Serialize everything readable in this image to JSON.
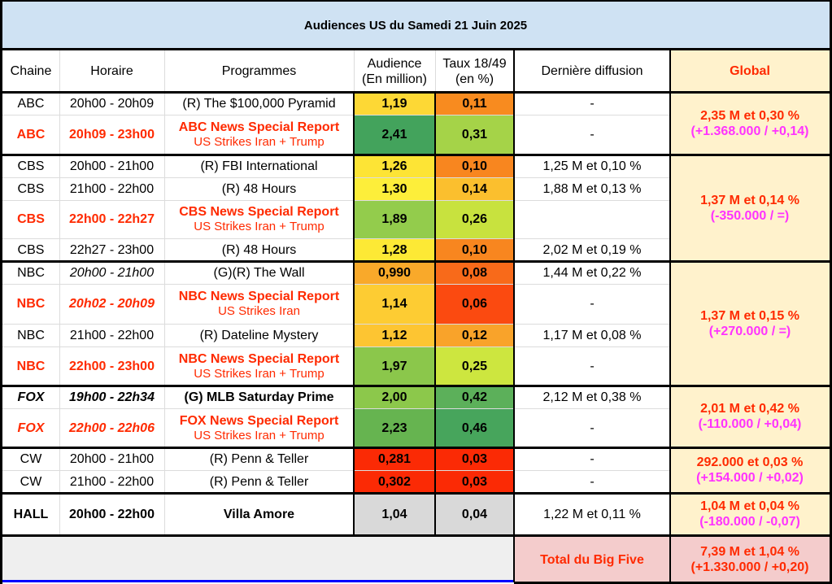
{
  "title": "Audiences US du Samedi 21 Juin 2025",
  "headers": {
    "chaine": "Chaine",
    "horaire": "Horaire",
    "programmes": "Programmes",
    "audience_l1": "Audience",
    "audience_l2": "(En million)",
    "taux_l1": "Taux 18/49",
    "taux_l2": "(en %)",
    "derniere": "Dernière diffusion",
    "global": "Global"
  },
  "rows": [
    {
      "chaine": "ABC",
      "horaire": "20h00 - 20h09",
      "programme": "(R) The $100,000 Pyramid",
      "sub": "",
      "audience": "1,19",
      "taux": "0,11",
      "derniere": "-",
      "aud_color": "#fdd835",
      "taux_color": "#f88b1f"
    },
    {
      "chaine": "ABC",
      "horaire": "20h09 - 23h00",
      "programme": "ABC News Special Report",
      "sub": "US Strikes Iran + Trump",
      "audience": "2,41",
      "taux": "0,31",
      "derniere": "-",
      "aud_color": "#43a35c",
      "taux_color": "#a5d348"
    },
    {
      "chaine": "CBS",
      "horaire": "20h00 - 21h00",
      "programme": "(R) FBI International",
      "sub": "",
      "audience": "1,26",
      "taux": "0,10",
      "derniere": "1,25 M et 0,10 %",
      "aud_color": "#fde435",
      "taux_color": "#f8861f"
    },
    {
      "chaine": "CBS",
      "horaire": "21h00 - 22h00",
      "programme": "(R) 48 Hours",
      "sub": "",
      "audience": "1,30",
      "taux": "0,14",
      "derniere": "1,88 M et 0,13 %",
      "aud_color": "#fdee3a",
      "taux_color": "#fbbf2e"
    },
    {
      "chaine": "CBS",
      "horaire": "22h00 - 22h27",
      "programme": "CBS News Special Report",
      "sub": "US Strikes Iran + Trump",
      "audience": "1,89",
      "taux": "0,26",
      "derniere": "",
      "aud_color": "#93cc4c",
      "taux_color": "#c8e23e"
    },
    {
      "chaine": "CBS",
      "horaire": "22h27 - 23h00",
      "programme": "(R) 48 Hours",
      "sub": "",
      "audience": "1,28",
      "taux": "0,10",
      "derniere": "2,02 M et 0,19 %",
      "aud_color": "#fde935",
      "taux_color": "#f8861f"
    },
    {
      "chaine": "NBC",
      "horaire": "20h00 - 21h00",
      "programme": "(G)(R) The Wall",
      "sub": "",
      "audience": "0,990",
      "taux": "0,08",
      "derniere": "1,44 M et 0,22 %",
      "aud_color": "#f9a92a",
      "taux_color": "#f86a1a"
    },
    {
      "chaine": "NBC",
      "horaire": "20h02 - 20h09",
      "programme": "NBC News Special Report",
      "sub": "US Strikes Iran",
      "audience": "1,14",
      "taux": "0,06",
      "derniere": "-",
      "aud_color": "#fdcc33",
      "taux_color": "#fb4a10"
    },
    {
      "chaine": "NBC",
      "horaire": "21h00 - 22h00",
      "programme": "(R) Dateline Mystery",
      "sub": "",
      "audience": "1,12",
      "taux": "0,12",
      "derniere": "1,17 M et 0,08 %",
      "aud_color": "#fdc532",
      "taux_color": "#f9a32a"
    },
    {
      "chaine": "NBC",
      "horaire": "22h00 - 23h00",
      "programme": "NBC News Special Report",
      "sub": "US Strikes Iran + Trump",
      "audience": "1,97",
      "taux": "0,25",
      "derniere": "-",
      "aud_color": "#8bc74b",
      "taux_color": "#cde63f"
    },
    {
      "chaine": "FOX",
      "horaire": "19h00 - 22h34",
      "programme": "(G) MLB Saturday Prime",
      "sub": "",
      "audience": "2,00",
      "taux": "0,42",
      "derniere": "2,12 M et 0,38 %",
      "aud_color": "#8cc84b",
      "taux_color": "#5cb05a"
    },
    {
      "chaine": "FOX",
      "horaire": "22h00 - 22h06",
      "programme": "FOX News Special Report",
      "sub": "US Strikes Iran + Trump",
      "audience": "2,23",
      "taux": "0,46",
      "derniere": "-",
      "aud_color": "#66b450",
      "taux_color": "#47a55c"
    },
    {
      "chaine": "CW",
      "horaire": "20h00 - 21h00",
      "programme": "(R) Penn & Teller",
      "sub": "",
      "audience": "0,281",
      "taux": "0,03",
      "derniere": "-",
      "aud_color": "#fb2a05",
      "taux_color": "#fb2a05"
    },
    {
      "chaine": "CW",
      "horaire": "21h00 - 22h00",
      "programme": "(R) Penn & Teller",
      "sub": "",
      "audience": "0,302",
      "taux": "0,03",
      "derniere": "-",
      "aud_color": "#fb2a05",
      "taux_color": "#fb2a05"
    },
    {
      "chaine": "HALL",
      "horaire": "20h00 - 22h00",
      "programme": "Villa Amore",
      "sub": "",
      "audience": "1,04",
      "taux": "0,04",
      "derniere": "1,22 M et 0,11 %",
      "aud_color": "#d9d9d9",
      "taux_color": "#d9d9d9"
    }
  ],
  "globals": [
    {
      "main": "2,35 M et 0,30 %",
      "delta": "(+1.368.000 / +0,14)"
    },
    {
      "main": "1,37 M et 0,14 %",
      "delta": "(-350.000 / =)"
    },
    {
      "main": "1,37 M et 0,15 %",
      "delta": "(+270.000 / =)"
    },
    {
      "main": "2,01 M et 0,42 %",
      "delta": "(-110.000 / +0,04)"
    },
    {
      "main": "292.000 et 0,03 %",
      "delta": "(+154.000 / +0,02)"
    },
    {
      "main": "1,04 M et 0,04 %",
      "delta": "(-180.000 / -0,07)"
    }
  ],
  "total": {
    "label": "Total du Big Five",
    "main": "7,39 M et 1,04 %",
    "delta": "(+1.330.000 / +0,20)"
  },
  "colors": {
    "title_bg": "#cfe2f3",
    "global_bg": "#fff2cc",
    "total_bg": "#f4cccc",
    "footer_bg": "#efefef",
    "highlight_red": "#ff2a00",
    "delta_magenta": "#ff33ff",
    "bottom_accent": "#0000ff"
  }
}
